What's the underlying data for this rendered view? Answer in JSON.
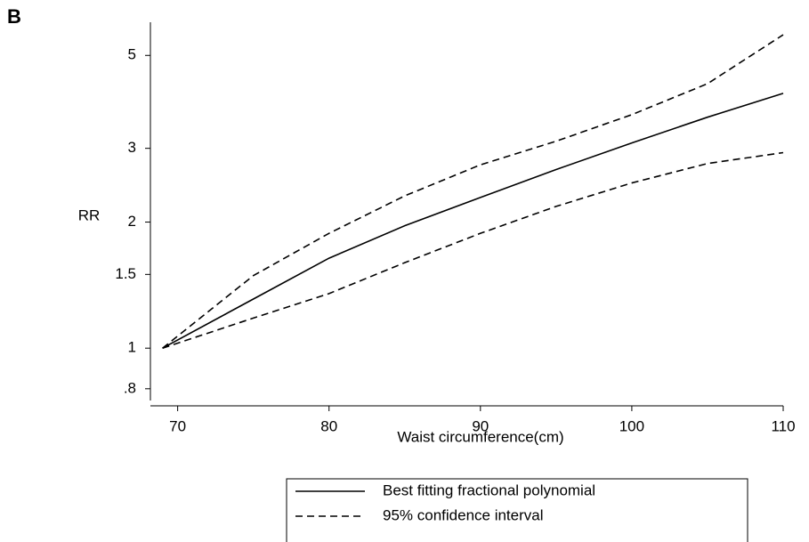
{
  "chart_data": {
    "type": "line",
    "panel_label": "B",
    "ylabel": "RR",
    "xlabel": "Waist circumference(cm)",
    "x": [
      69,
      75,
      80,
      85,
      90,
      95,
      100,
      105,
      110
    ],
    "series": [
      {
        "name": "Best fitting fractional polynomial",
        "color": "#000000",
        "dash": false,
        "values": [
          1.0,
          1.31,
          1.64,
          1.96,
          2.29,
          2.67,
          3.09,
          3.56,
          4.06
        ]
      },
      {
        "name": "95% confidence interval",
        "color": "#000000",
        "dash": true,
        "values": [
          1.0,
          1.49,
          1.88,
          2.31,
          2.74,
          3.12,
          3.61,
          4.28,
          5.6
        ],
        "lower": [
          1.0,
          1.18,
          1.35,
          1.6,
          1.88,
          2.18,
          2.48,
          2.76,
          2.93
        ]
      }
    ],
    "xlim": [
      68.2,
      110
    ],
    "xticks": [
      70,
      80,
      90,
      100,
      110
    ],
    "ylim": [
      0.75,
      6
    ],
    "yticks": [
      {
        "value": 0.8,
        "label": ".8"
      },
      1,
      1.5,
      2,
      3,
      5
    ],
    "log_y": true,
    "grid": false,
    "legend": "bottom"
  }
}
